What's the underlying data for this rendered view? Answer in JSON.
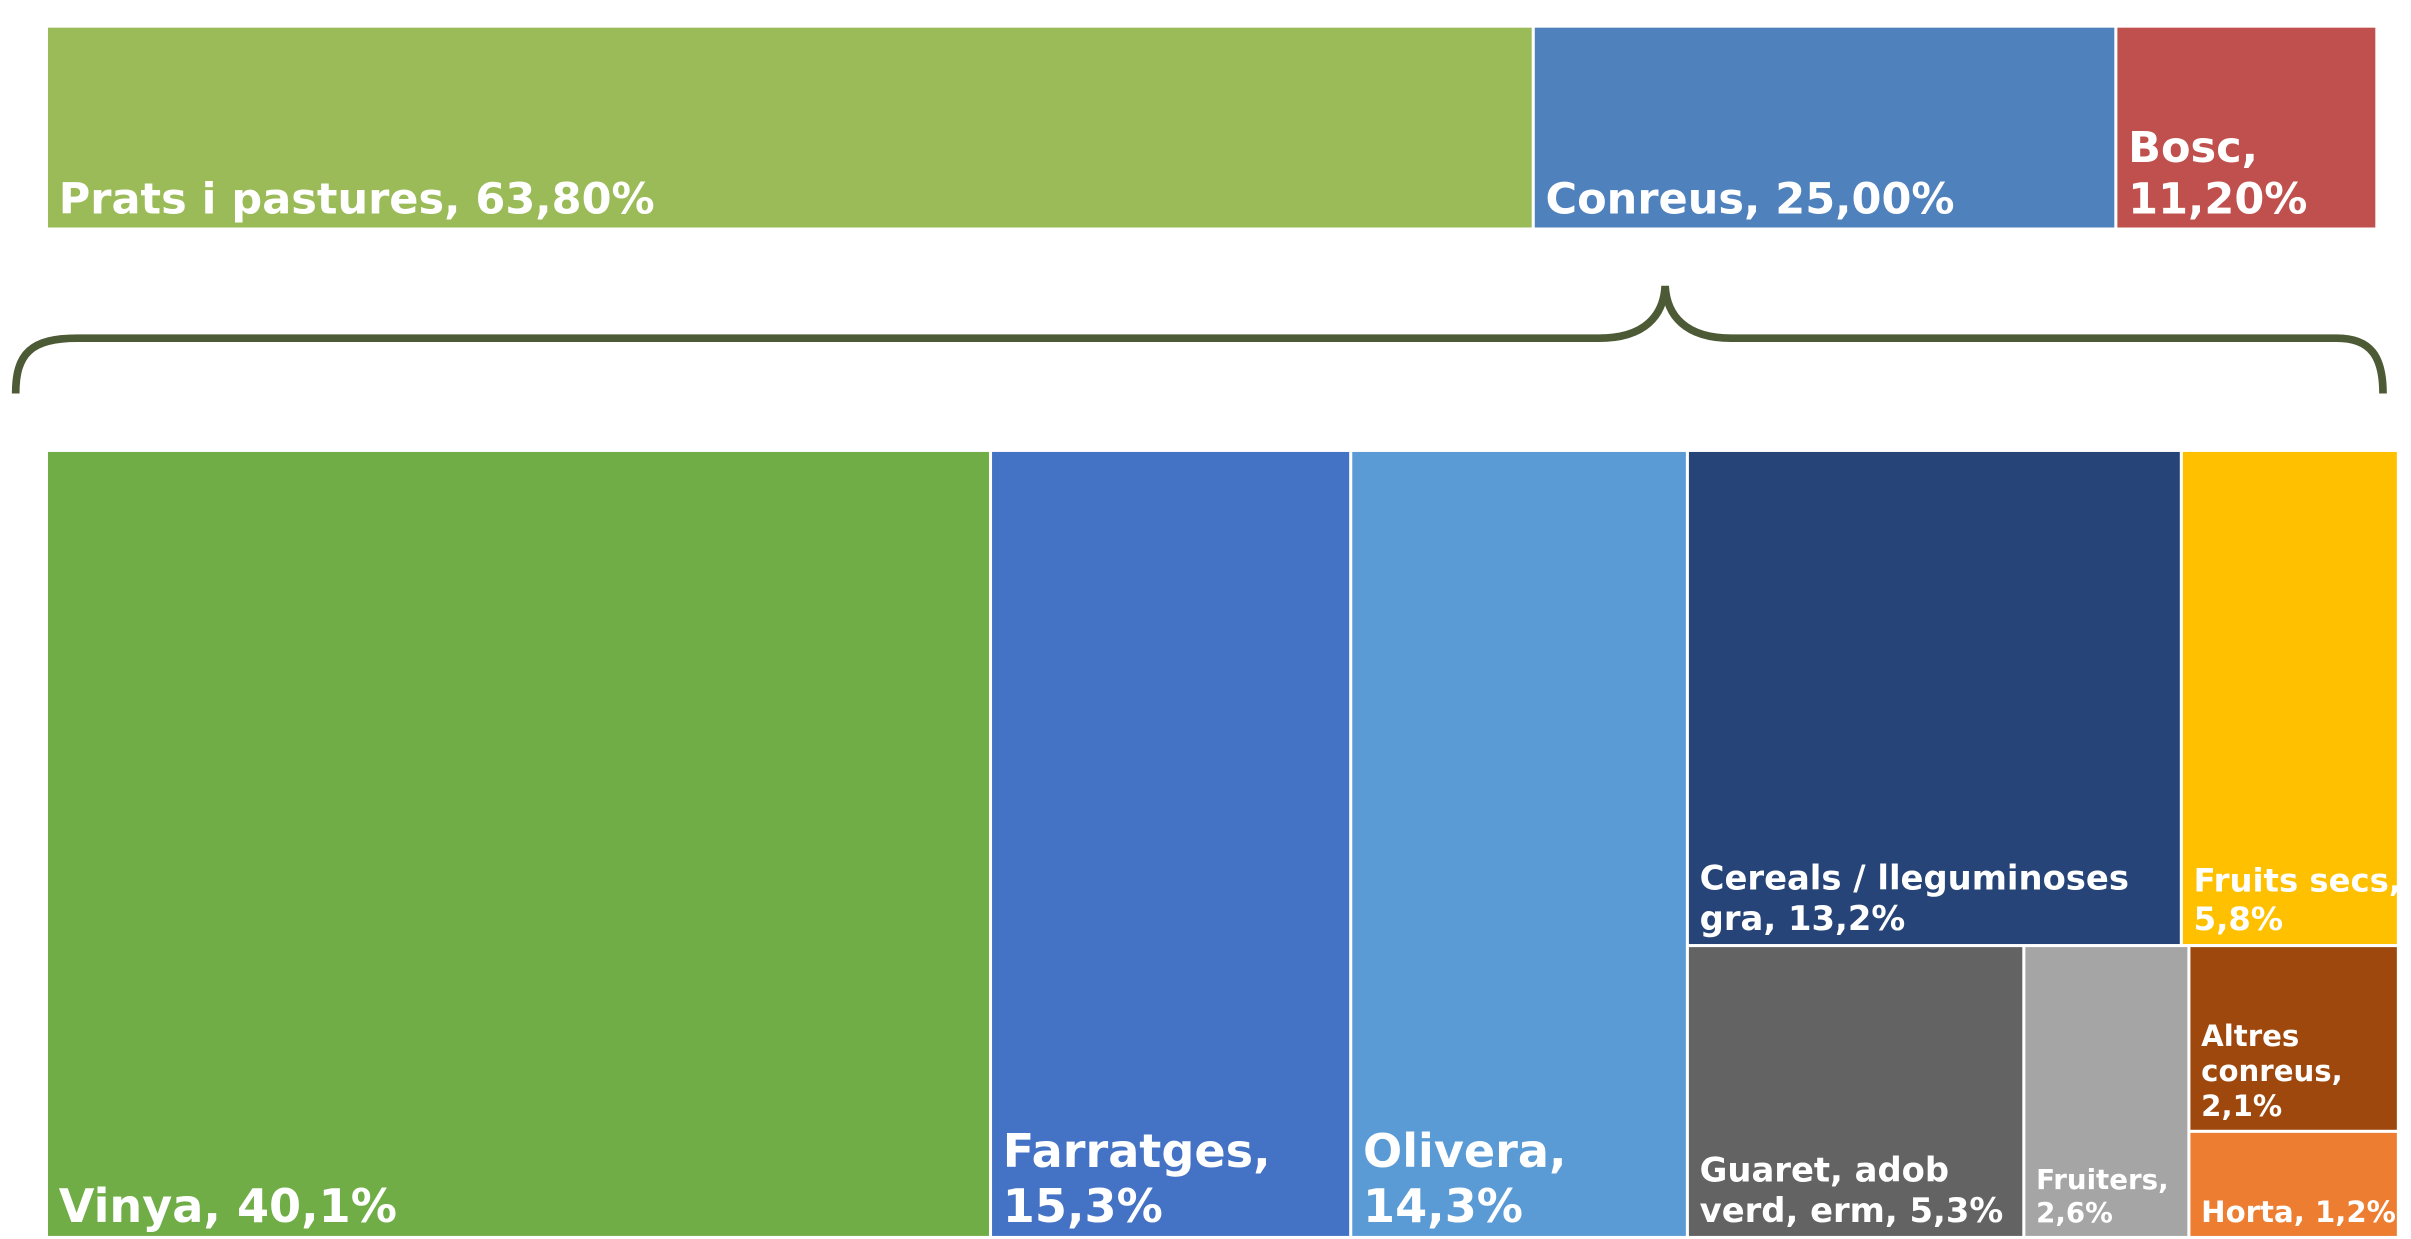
{
  "chart_data": [
    {
      "type": "treemap",
      "categories": [
        "Prats i pastures",
        "Conreus",
        "Bosc"
      ],
      "labels": [
        [
          "Prats i pastures, 63,80%"
        ],
        [
          "Conreus, 25,00%"
        ],
        [
          "Bosc,",
          "11,20%"
        ]
      ],
      "values": [
        63.8,
        25.0,
        11.2
      ],
      "colors": [
        "#9bbb59",
        "#4f81bd",
        "#c0504d"
      ]
    },
    {
      "type": "treemap",
      "categories": [
        "Vinya",
        "Farratges",
        "Olivera",
        "Cereals / lleguminoses gra",
        "Fruits secs",
        "Guaret, adob verd, erm",
        "Fruiters",
        "Altres conreus",
        "Horta"
      ],
      "labels": [
        [
          "Vinya, 40,1%"
        ],
        [
          "Farratges,",
          "15,3%"
        ],
        [
          "Olivera,",
          "14,3%"
        ],
        [
          "Cereals / lleguminoses",
          "gra, 13,2%"
        ],
        [
          "Fruits secs,",
          "5,8%"
        ],
        [
          "Guaret, adob",
          "verd, erm, 5,3%"
        ],
        [
          "Fruiters,",
          "2,6%"
        ],
        [
          "Altres",
          "conreus,",
          "2,1%"
        ],
        [
          "Horta, 1,2%"
        ]
      ],
      "values": [
        40.1,
        15.3,
        14.3,
        13.2,
        5.8,
        5.3,
        2.6,
        2.1,
        1.2
      ],
      "colors": [
        "#70ad47",
        "#4472c4",
        "#5b9bd5",
        "#264478",
        "#ffc000",
        "#636363",
        "#a5a5a5",
        "#9e480e",
        "#ed7d31"
      ]
    }
  ]
}
